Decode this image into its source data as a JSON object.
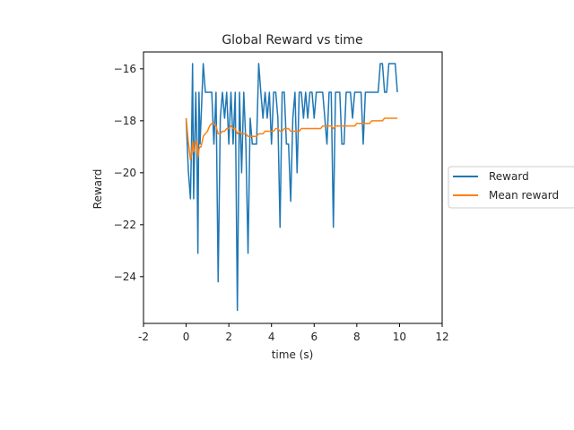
{
  "chart_data": {
    "type": "line",
    "title": "Global Reward vs time",
    "xlabel": "time (s)",
    "ylabel": "Reward",
    "xlim": [
      -2,
      12
    ],
    "ylim": [
      -25.8,
      -15.35
    ],
    "xticks": [
      -2,
      0,
      2,
      4,
      6,
      8,
      10,
      12
    ],
    "xtick_labels": [
      "-2",
      "0",
      "2",
      "4",
      "6",
      "8",
      "10",
      "12"
    ],
    "yticks": [
      -24,
      -22,
      -20,
      -18,
      -16
    ],
    "ytick_labels": [
      "−24",
      "−22",
      "−20",
      "−18",
      "−16"
    ],
    "grid": false,
    "legend_position": "outside-right",
    "x": [
      0.0,
      0.1,
      0.2,
      0.25,
      0.3,
      0.35,
      0.4,
      0.45,
      0.5,
      0.55,
      0.6,
      0.65,
      0.7,
      0.8,
      0.9,
      1.0,
      1.1,
      1.2,
      1.3,
      1.4,
      1.5,
      1.6,
      1.7,
      1.8,
      1.9,
      2.0,
      2.1,
      2.2,
      2.3,
      2.4,
      2.5,
      2.6,
      2.7,
      2.8,
      2.9,
      3.0,
      3.1,
      3.2,
      3.3,
      3.4,
      3.5,
      3.6,
      3.7,
      3.8,
      3.9,
      4.0,
      4.1,
      4.2,
      4.3,
      4.4,
      4.5,
      4.6,
      4.7,
      4.8,
      4.9,
      5.0,
      5.1,
      5.2,
      5.3,
      5.4,
      5.5,
      5.6,
      5.7,
      5.8,
      5.9,
      6.0,
      6.1,
      6.2,
      6.3,
      6.4,
      6.5,
      6.6,
      6.7,
      6.8,
      6.9,
      7.0,
      7.1,
      7.2,
      7.3,
      7.4,
      7.5,
      7.6,
      7.7,
      7.8,
      7.9,
      8.0,
      8.1,
      8.2,
      8.3,
      8.4,
      8.5,
      8.6,
      8.7,
      8.8,
      8.9,
      9.0,
      9.1,
      9.2,
      9.3,
      9.4,
      9.5,
      9.6,
      9.7,
      9.8,
      9.9
    ],
    "series": [
      {
        "name": "Reward",
        "color": "#1f77b4",
        "values": [
          -17.9,
          -19.9,
          -21.0,
          -18.9,
          -15.8,
          -21.0,
          -18.9,
          -16.9,
          -18.9,
          -23.1,
          -16.9,
          -18.9,
          -17.9,
          -15.8,
          -16.9,
          -16.9,
          -16.9,
          -16.9,
          -18.9,
          -16.9,
          -24.2,
          -17.9,
          -16.9,
          -17.9,
          -16.9,
          -18.9,
          -16.9,
          -18.9,
          -16.9,
          -25.3,
          -16.9,
          -20.0,
          -16.9,
          -18.9,
          -23.1,
          -17.9,
          -18.9,
          -18.9,
          -18.9,
          -15.8,
          -16.9,
          -17.9,
          -16.9,
          -17.9,
          -16.9,
          -18.9,
          -16.9,
          -16.9,
          -17.9,
          -22.1,
          -16.9,
          -16.9,
          -18.9,
          -18.9,
          -21.1,
          -17.9,
          -16.9,
          -20.0,
          -16.9,
          -16.9,
          -17.9,
          -16.9,
          -17.9,
          -16.9,
          -16.9,
          -17.9,
          -16.9,
          -16.9,
          -16.9,
          -16.9,
          -17.9,
          -18.9,
          -16.9,
          -16.9,
          -22.1,
          -16.9,
          -16.9,
          -16.9,
          -18.9,
          -18.9,
          -16.9,
          -16.9,
          -16.9,
          -17.9,
          -16.9,
          -16.9,
          -16.9,
          -16.9,
          -18.9,
          -16.9,
          -16.9,
          -16.9,
          -16.9,
          -16.9,
          -16.9,
          -16.9,
          -15.8,
          -15.8,
          -16.9,
          -16.9,
          -15.8,
          -15.8,
          -15.8,
          -15.8,
          -16.9
        ]
      },
      {
        "name": "Mean reward",
        "color": "#ff7f0e",
        "values": [
          -17.9,
          -18.8,
          -19.5,
          -19.3,
          -18.8,
          -19.2,
          -19.1,
          -18.8,
          -18.8,
          -19.4,
          -19.1,
          -19.0,
          -19.0,
          -18.6,
          -18.5,
          -18.4,
          -18.2,
          -18.1,
          -18.1,
          -18.2,
          -18.5,
          -18.5,
          -18.4,
          -18.4,
          -18.3,
          -18.3,
          -18.2,
          -18.3,
          -18.3,
          -18.5,
          -18.4,
          -18.5,
          -18.5,
          -18.5,
          -18.6,
          -18.6,
          -18.6,
          -18.6,
          -18.6,
          -18.5,
          -18.5,
          -18.5,
          -18.4,
          -18.4,
          -18.4,
          -18.4,
          -18.4,
          -18.3,
          -18.3,
          -18.4,
          -18.4,
          -18.3,
          -18.3,
          -18.3,
          -18.4,
          -18.4,
          -18.4,
          -18.4,
          -18.4,
          -18.3,
          -18.3,
          -18.3,
          -18.3,
          -18.3,
          -18.3,
          -18.3,
          -18.3,
          -18.3,
          -18.3,
          -18.2,
          -18.2,
          -18.2,
          -18.2,
          -18.2,
          -18.3,
          -18.2,
          -18.2,
          -18.2,
          -18.2,
          -18.2,
          -18.2,
          -18.2,
          -18.2,
          -18.2,
          -18.2,
          -18.1,
          -18.1,
          -18.1,
          -18.1,
          -18.1,
          -18.1,
          -18.1,
          -18.0,
          -18.0,
          -18.0,
          -18.0,
          -18.0,
          -18.0,
          -17.9,
          -17.9,
          -17.9,
          -17.9,
          -17.9,
          -17.9,
          -17.9
        ]
      }
    ]
  }
}
